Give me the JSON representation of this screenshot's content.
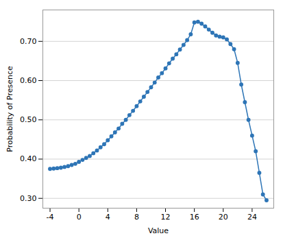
{
  "chart_data": {
    "type": "line",
    "x": [
      -4,
      -3.5,
      -3,
      -2.5,
      -2,
      -1.5,
      -1,
      -0.5,
      0,
      0.5,
      1,
      1.5,
      2,
      2.5,
      3,
      3.5,
      4,
      4.5,
      5,
      5.5,
      6,
      6.5,
      7,
      7.5,
      8,
      8.5,
      9,
      9.5,
      10,
      10.5,
      11,
      11.5,
      12,
      12.5,
      13,
      13.5,
      14,
      14.5,
      15,
      15.5,
      16,
      16.5,
      17,
      17.5,
      18,
      18.5,
      19,
      19.5,
      20,
      20.5,
      21,
      21.5,
      22,
      22.5,
      23,
      23.5,
      24,
      24.5,
      25,
      25.5,
      26
    ],
    "values": [
      0.375,
      0.376,
      0.377,
      0.378,
      0.38,
      0.382,
      0.385,
      0.388,
      0.393,
      0.398,
      0.403,
      0.408,
      0.415,
      0.422,
      0.43,
      0.438,
      0.448,
      0.458,
      0.468,
      0.478,
      0.49,
      0.5,
      0.512,
      0.523,
      0.535,
      0.547,
      0.559,
      0.571,
      0.583,
      0.595,
      0.608,
      0.619,
      0.631,
      0.644,
      0.656,
      0.667,
      0.679,
      0.691,
      0.703,
      0.718,
      0.748,
      0.75,
      0.745,
      0.738,
      0.73,
      0.722,
      0.715,
      0.712,
      0.71,
      0.705,
      0.693,
      0.68,
      0.645,
      0.59,
      0.545,
      0.5,
      0.46,
      0.42,
      0.365,
      0.31,
      0.295
    ],
    "color": "#2E75B6",
    "marker": "circle",
    "xlabel": "Value",
    "ylabel": "Probability of Presence",
    "xlim": [
      -5,
      27
    ],
    "ylim": [
      0.275,
      0.78
    ],
    "xticks": [
      -4,
      0,
      4,
      8,
      12,
      16,
      20,
      24
    ],
    "yticks": [
      {
        "value": 0.3,
        "label": "0.30"
      },
      {
        "value": 0.4,
        "label": "0.40"
      },
      {
        "value": 0.5,
        "label": "0.50"
      },
      {
        "value": 0.6,
        "label": "0.60"
      },
      {
        "value": 0.7,
        "label": "0.70"
      }
    ],
    "grid": "y"
  }
}
